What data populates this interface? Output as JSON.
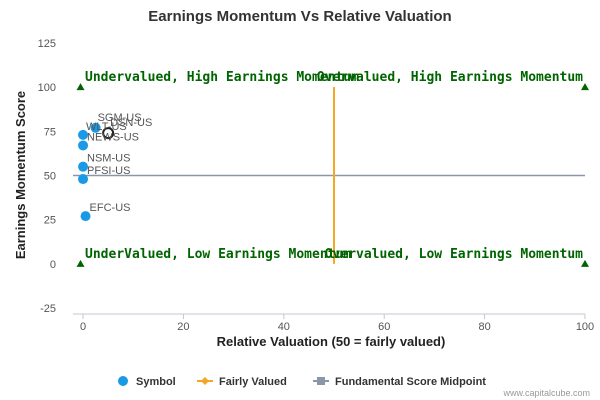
{
  "chart_data": {
    "type": "scatter",
    "title": "Earnings Momentum Vs Relative Valuation",
    "xlabel": "Relative Valuation (50 = fairly valued)",
    "ylabel": "Earnings Momentum Score",
    "xlim": [
      -2,
      100
    ],
    "ylim": [
      -25,
      125
    ],
    "xticks": [
      0,
      20,
      40,
      60,
      80,
      100
    ],
    "yticks": [
      -25,
      0,
      25,
      50,
      75,
      100,
      125
    ],
    "grid": false,
    "legend_position": "bottom",
    "colors": {
      "symbol": "#1a9ae6",
      "fairly_valued": "#f5a623",
      "midpoint": "#8a97a8",
      "quadrant_text": "#006400",
      "marker": "#006400"
    },
    "series": [
      {
        "name": "Symbol",
        "points": [
          {
            "label": "SGM-US",
            "x": 2.5,
            "y": 77
          },
          {
            "label": "WLT-US",
            "x": 0,
            "y": 73
          },
          {
            "label": "DSN-US",
            "x": 5,
            "y": 74,
            "highlight": true
          },
          {
            "label": "NEWS-US",
            "x": 0,
            "y": 67
          },
          {
            "label": "NSM-US",
            "x": 0,
            "y": 55
          },
          {
            "label": "PFSI-US",
            "x": 0,
            "y": 48
          },
          {
            "label": "EFC-US",
            "x": 0.5,
            "y": 27
          }
        ]
      },
      {
        "name": "Fairly Valued",
        "x": 50,
        "y_range": [
          0,
          100
        ]
      },
      {
        "name": "Fundamental Score Midpoint",
        "y": 50,
        "x_range": [
          -2,
          100
        ]
      }
    ],
    "quadrant_labels": [
      {
        "text": "Undervalued, High Earnings Momentum",
        "x": 0,
        "y": 100,
        "anchor": "start"
      },
      {
        "text": "Overvalued, High Earnings Momentum",
        "x": 100,
        "y": 100,
        "anchor": "end"
      },
      {
        "text": "UnderValued, Low Earnings Momentum",
        "x": 0,
        "y": 0,
        "anchor": "start"
      },
      {
        "text": "Overvalued, Low Earnings Momentum",
        "x": 100,
        "y": 0,
        "anchor": "end"
      }
    ],
    "corner_markers": [
      {
        "x": -0.5,
        "y": 100
      },
      {
        "x": 100,
        "y": 100
      },
      {
        "x": -0.5,
        "y": 0
      },
      {
        "x": 100,
        "y": 0
      }
    ]
  },
  "credit": "www.capitalcube.com"
}
